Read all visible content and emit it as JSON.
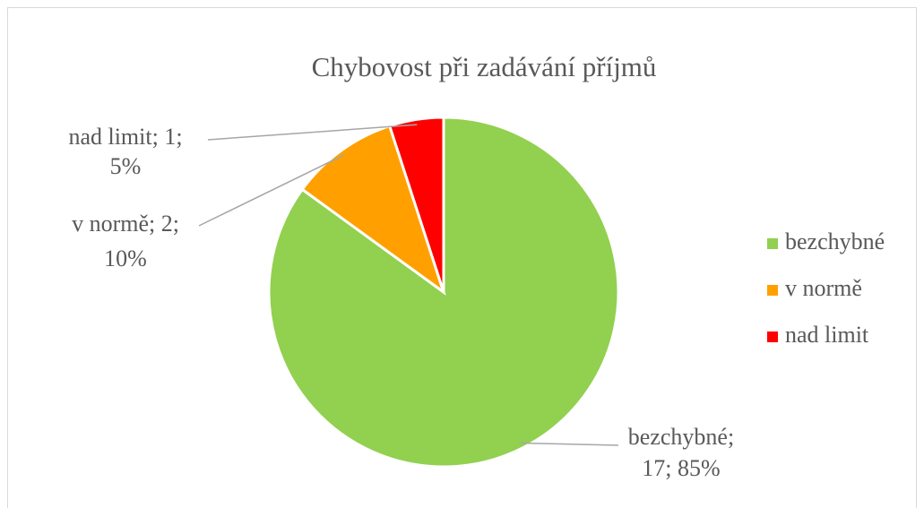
{
  "chart_data": {
    "type": "pie",
    "title": "Chybovost při zadávání příjmů",
    "categories": [
      "bezchybné",
      "v normě",
      "nad limit"
    ],
    "values": [
      17,
      2,
      1
    ],
    "value_labels": [
      [
        "bezchybné;",
        "17; 85%"
      ],
      [
        "v normě; 2;",
        "10%"
      ],
      [
        "nad limit; 1;",
        "5%"
      ]
    ],
    "colors": [
      "#92d050",
      "#ffa000",
      "#ff0000"
    ],
    "legend": "right"
  }
}
